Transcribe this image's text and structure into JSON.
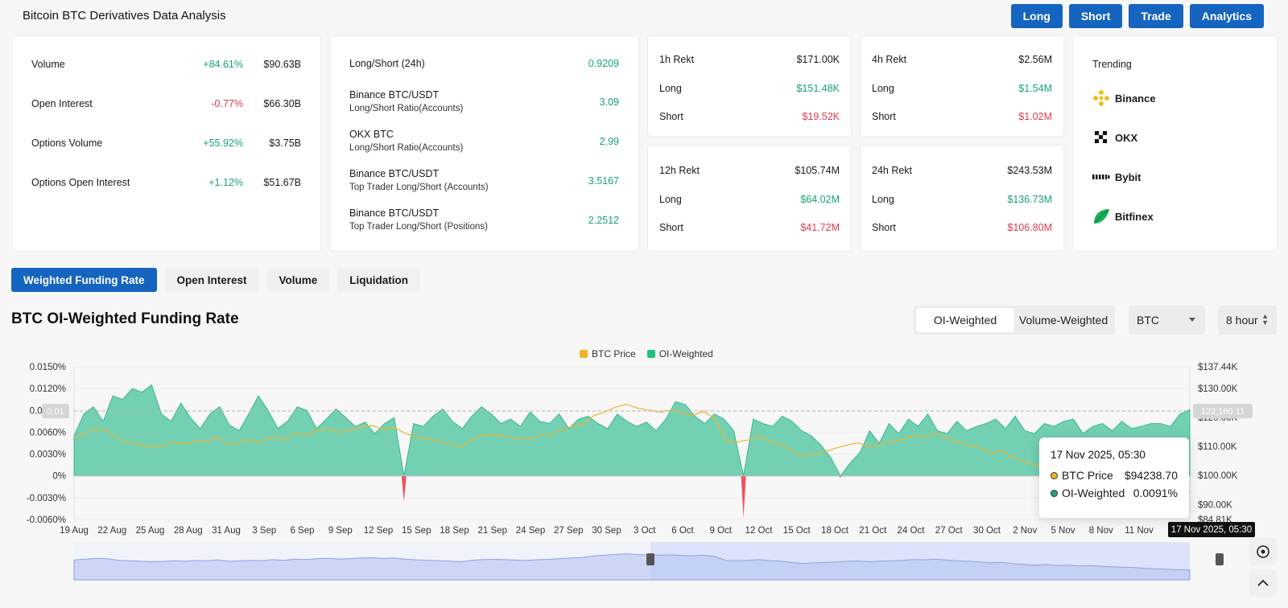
{
  "page": {
    "title": "Bitcoin BTC Derivatives Data Analysis",
    "buttons": [
      "Long",
      "Short",
      "Trade",
      "Analytics"
    ]
  },
  "overview": [
    {
      "label": "Volume",
      "change": "+84.61%",
      "value": "$90.63B",
      "dir": "pos"
    },
    {
      "label": "Open Interest",
      "change": "-0.77%",
      "value": "$66.30B",
      "dir": "neg"
    },
    {
      "label": "Options Volume",
      "change": "+55.92%",
      "value": "$3.75B",
      "dir": "pos"
    },
    {
      "label": "Options Open Interest",
      "change": "+1.12%",
      "value": "$51.67B",
      "dir": "pos"
    }
  ],
  "ratios": [
    {
      "label": "Long/Short (24h)",
      "sub": "",
      "value": "0.9209"
    },
    {
      "label": "Binance BTC/USDT",
      "sub": "Long/Short Ratio(Accounts)",
      "value": "3.09"
    },
    {
      "label": "OKX BTC",
      "sub": "Long/Short Ratio(Accounts)",
      "value": "2.99"
    },
    {
      "label": "Binance BTC/USDT",
      "sub": "Top Trader Long/Short (Accounts)",
      "value": "3.5167"
    },
    {
      "label": "Binance BTC/USDT",
      "sub": "Top Trader Long/Short (Positions)",
      "value": "2.2512"
    }
  ],
  "rekt": [
    {
      "period": "1h Rekt",
      "total": "$171.00K",
      "long_label": "Long",
      "long": "$151.48K",
      "short_label": "Short",
      "short": "$19.52K"
    },
    {
      "period": "4h Rekt",
      "total": "$2.56M",
      "long_label": "Long",
      "long": "$1.54M",
      "short_label": "Short",
      "short": "$1.02M"
    },
    {
      "period": "12h Rekt",
      "total": "$105.74M",
      "long_label": "Long",
      "long": "$64.02M",
      "short_label": "Short",
      "short": "$41.72M"
    },
    {
      "period": "24h Rekt",
      "total": "$243.53M",
      "long_label": "Long",
      "long": "$136.73M",
      "short_label": "Short",
      "short": "$106.80M"
    }
  ],
  "trending": {
    "title": "Trending",
    "items": [
      {
        "name": "Binance",
        "icon": "binance-icon",
        "color": "#f0b90b"
      },
      {
        "name": "OKX",
        "icon": "okx-icon",
        "color": "#111111"
      },
      {
        "name": "Bybit",
        "icon": "bybit-icon",
        "color": "#111111"
      },
      {
        "name": "Bitfinex",
        "icon": "bitfinex-icon",
        "color": "#16b157"
      }
    ]
  },
  "tabs": [
    {
      "label": "Weighted Funding Rate",
      "active": true
    },
    {
      "label": "Open Interest",
      "active": false
    },
    {
      "label": "Volume",
      "active": false
    },
    {
      "label": "Liquidation",
      "active": false
    }
  ],
  "chart_header": {
    "title": "BTC OI-Weighted Funding Rate",
    "segments": [
      "OI-Weighted",
      "Volume-Weighted"
    ],
    "coin": "BTC",
    "interval": "8 hour"
  },
  "tooltip": {
    "time": "17 Nov 2025, 05:30",
    "rows": [
      {
        "name": "BTC Price",
        "value": "$94238.70",
        "color": "#f0b429"
      },
      {
        "name": "OI-Weighted",
        "value": "0.0091%",
        "color": "#2a9d7e"
      }
    ]
  },
  "chart_data": {
    "type": "area",
    "legend": [
      "BTC Price",
      "OI-Weighted"
    ],
    "legend_placement": "top-center",
    "colors": {
      "price": "#f0b429",
      "funding_pos": "#5cc9a7",
      "funding_neg": "#f0505a"
    },
    "x_ticks": [
      "19 Aug",
      "22 Aug",
      "25 Aug",
      "28 Aug",
      "31 Aug",
      "3 Sep",
      "6 Sep",
      "9 Sep",
      "12 Sep",
      "15 Sep",
      "18 Sep",
      "21 Sep",
      "24 Sep",
      "27 Sep",
      "30 Sep",
      "3 Oct",
      "6 Oct",
      "9 Oct",
      "12 Oct",
      "15 Oct",
      "18 Oct",
      "21 Oct",
      "24 Oct",
      "27 Oct",
      "30 Oct",
      "2 Nov",
      "5 Nov",
      "8 Nov",
      "11 Nov"
    ],
    "y_left_ticks": [
      "0.0150%",
      "0.0120%",
      "0.0090%",
      "0.0060%",
      "0.0030%",
      "0%",
      "-0.0030%",
      "-0.0060%"
    ],
    "y_right_ticks": [
      "$137.44K",
      "$130.00K",
      "$120.00K",
      "$110.00K",
      "$100.00K",
      "$90.00K",
      "$84.81K"
    ],
    "y_left_range": [
      -0.006,
      0.015
    ],
    "y_right_range": [
      84810,
      137440
    ],
    "crosshair_left_label": "0.01",
    "crosshair_right_label": "122,160.11",
    "crosshair_x_label": "17 Nov 2025, 05:30",
    "funding_series": {
      "name": "OI-Weighted",
      "values": [
        0.0055,
        0.0085,
        0.0095,
        0.0075,
        0.011,
        0.0105,
        0.012,
        0.0115,
        0.0125,
        0.0085,
        0.0075,
        0.01,
        0.008,
        0.0065,
        0.0085,
        0.0095,
        0.007,
        0.0062,
        0.0085,
        0.011,
        0.009,
        0.0065,
        0.0075,
        0.0095,
        0.009,
        0.0065,
        0.0078,
        0.0092,
        0.008,
        0.0068,
        0.0074,
        0.0058,
        0.0072,
        0.008,
        -0.0035,
        0.0072,
        0.0068,
        0.0082,
        0.0092,
        0.0075,
        0.0065,
        0.0082,
        0.0095,
        0.0085,
        0.0072,
        0.0078,
        0.0068,
        0.0088,
        0.0075,
        0.0072,
        0.0085,
        0.0065,
        0.0078,
        0.0082,
        0.0072,
        0.0065,
        0.0085,
        0.0075,
        0.0068,
        0.0074,
        0.0062,
        0.0078,
        0.0102,
        0.0098,
        0.0082,
        0.0072,
        0.0085,
        0.0078,
        0.0062,
        -0.0058,
        0.0078,
        0.0072,
        0.0068,
        0.0082,
        0.0075,
        0.0062,
        0.0055,
        0.0042,
        0.0025,
        -0.0002,
        0.0018,
        0.0032,
        0.0062,
        0.0045,
        0.0072,
        0.0058,
        0.0078,
        0.0068,
        0.0085,
        0.0062,
        0.0058,
        0.0075,
        0.0062,
        0.0068,
        0.0072,
        0.0078,
        0.0065,
        0.0082,
        0.0062,
        0.0058,
        0.0072,
        0.0068,
        0.0075,
        0.0078,
        0.0058,
        0.0068,
        0.0072,
        0.0062,
        0.0075,
        0.0065,
        0.0068,
        0.0072,
        0.0072,
        0.0068,
        0.0085,
        0.0091
      ]
    },
    "price_series": {
      "name": "BTC Price",
      "values": [
        113000,
        114500,
        116000,
        115500,
        112500,
        111500,
        110500,
        109800,
        110200,
        111500,
        110800,
        112000,
        111500,
        113200,
        110500,
        111500,
        112300,
        111800,
        113500,
        112200,
        114500,
        113800,
        115500,
        116200,
        114800,
        115500,
        116800,
        117200,
        115800,
        116500,
        114500,
        113200,
        112500,
        111800,
        110800,
        109800,
        112300,
        113800,
        114200,
        113500,
        112800,
        112200,
        113500,
        114200,
        115500,
        116800,
        117500,
        120500,
        121800,
        123500,
        124500,
        123200,
        122500,
        121800,
        122500,
        121500,
        120800,
        122000,
        119500,
        112000,
        111500,
        112200,
        113500,
        111800,
        110500,
        108500,
        106500,
        107500,
        108200,
        109500,
        110500,
        111200,
        109800,
        110800,
        111500,
        112500,
        113800,
        113200,
        114500,
        112800,
        111500,
        110500,
        109500,
        107800,
        108500,
        106200,
        104800,
        103500,
        104500,
        102500,
        103200,
        101800,
        102500,
        101200,
        100200,
        99500,
        98800,
        97500,
        96500,
        95500,
        94800,
        94238
      ]
    }
  }
}
